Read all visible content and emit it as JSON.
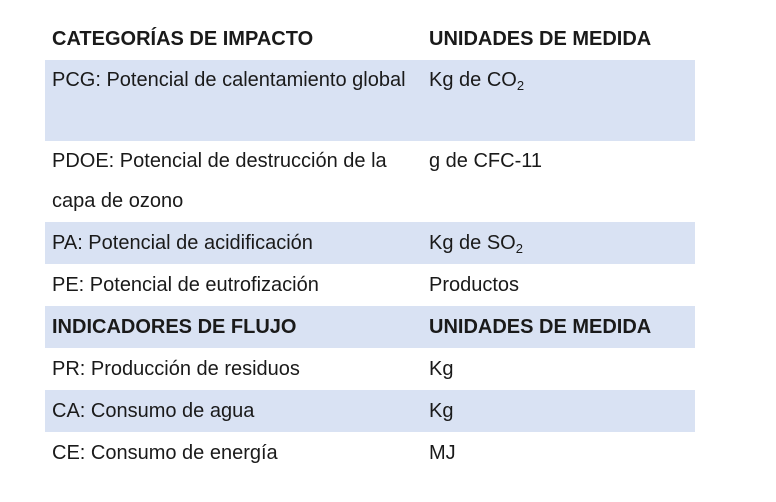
{
  "table": {
    "header1": {
      "col1": "CATEGORÍAS DE IMPACTO",
      "col2": "UNIDADES DE MEDIDA"
    },
    "rows1": [
      {
        "col1": "PCG: Potencial de calentamiento global",
        "unit_base": "Kg de CO",
        "unit_sub": "2",
        "shaded": true
      },
      {
        "col1": "PDOE: Potencial de destrucción de la capa de ozono",
        "unit_base": "g de CFC-11",
        "unit_sub": "",
        "shaded": false
      },
      {
        "col1": "PA: Potencial de acidificación",
        "unit_base": "Kg de SO",
        "unit_sub": "2",
        "shaded": true
      },
      {
        "col1": "PE: Potencial de eutrofización",
        "unit_base": "Productos",
        "unit_sub": "",
        "shaded": false
      }
    ],
    "header2": {
      "col1": "INDICADORES DE FLUJO",
      "col2": "UNIDADES DE MEDIDA"
    },
    "rows2": [
      {
        "col1": "PR: Producción de residuos",
        "unit": "Kg"
      },
      {
        "col1": "CA: Consumo de agua",
        "unit": "Kg"
      },
      {
        "col1": "CE: Consumo de energía",
        "unit": "MJ"
      }
    ]
  },
  "colors": {
    "shaded_row": "#d9e2f3",
    "text": "#1a1a1a",
    "background": "#ffffff"
  }
}
